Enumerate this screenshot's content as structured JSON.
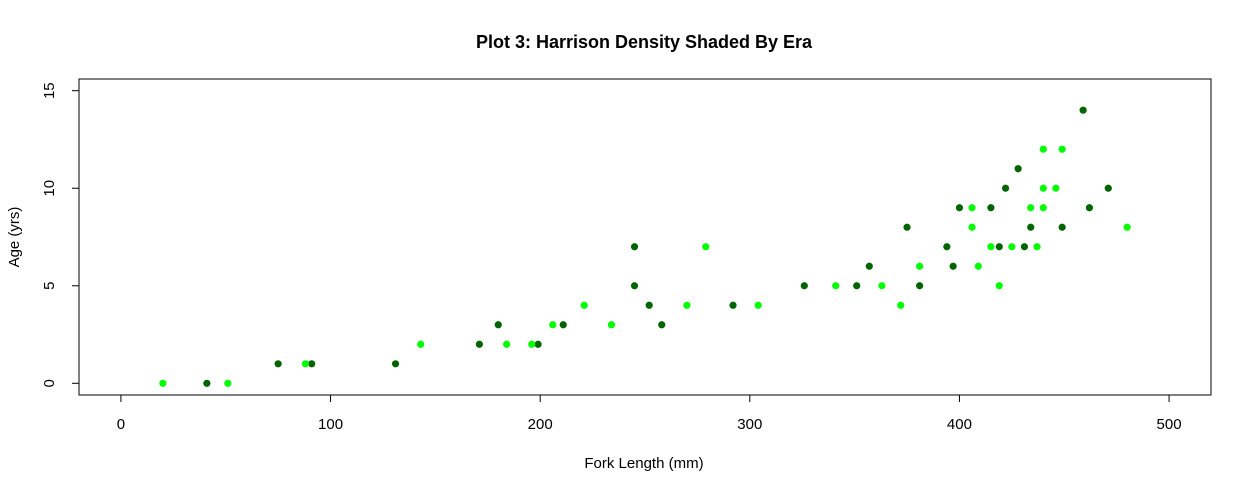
{
  "chart_data": {
    "type": "scatter",
    "title": "Plot 3: Harrison Density Shaded By Era",
    "xlabel": "Fork Length (mm)",
    "ylabel": "Age (yrs)",
    "xlim": [
      -20,
      520
    ],
    "ylim": [
      -0.6,
      15.6
    ],
    "xticks": [
      0,
      100,
      200,
      300,
      400,
      500
    ],
    "yticks": [
      0,
      5,
      10,
      15
    ],
    "grid": false,
    "legend": "none",
    "colors": {
      "dark": "#006400",
      "bright": "#00ff00"
    },
    "series": [
      {
        "color": "#006400",
        "points": [
          [
            41,
            0
          ],
          [
            75,
            1
          ],
          [
            91,
            1
          ],
          [
            131,
            1
          ],
          [
            171,
            2
          ],
          [
            180,
            3
          ],
          [
            199,
            2
          ],
          [
            211,
            3
          ],
          [
            245,
            5
          ],
          [
            245,
            7
          ],
          [
            252,
            4
          ],
          [
            258,
            3
          ],
          [
            292,
            4
          ],
          [
            326,
            5
          ],
          [
            351,
            5
          ],
          [
            357,
            6
          ],
          [
            375,
            8
          ],
          [
            381,
            5
          ],
          [
            394,
            7
          ],
          [
            397,
            6
          ],
          [
            400,
            9
          ],
          [
            415,
            9
          ],
          [
            419,
            7
          ],
          [
            422,
            10
          ],
          [
            428,
            11
          ],
          [
            431,
            7
          ],
          [
            434,
            8
          ],
          [
            449,
            8
          ],
          [
            459,
            14
          ],
          [
            462,
            9
          ],
          [
            471,
            10
          ]
        ]
      },
      {
        "color": "#00ff00",
        "points": [
          [
            20,
            0
          ],
          [
            51,
            0
          ],
          [
            88,
            1
          ],
          [
            143,
            2
          ],
          [
            184,
            2
          ],
          [
            196,
            2
          ],
          [
            206,
            3
          ],
          [
            221,
            4
          ],
          [
            234,
            3
          ],
          [
            270,
            4
          ],
          [
            279,
            7
          ],
          [
            304,
            4
          ],
          [
            341,
            5
          ],
          [
            363,
            5
          ],
          [
            372,
            4
          ],
          [
            381,
            6
          ],
          [
            406,
            9
          ],
          [
            406,
            8
          ],
          [
            409,
            6
          ],
          [
            415,
            7
          ],
          [
            419,
            5
          ],
          [
            425,
            7
          ],
          [
            434,
            9
          ],
          [
            437,
            7
          ],
          [
            440,
            12
          ],
          [
            440,
            10
          ],
          [
            440,
            9
          ],
          [
            446,
            10
          ],
          [
            449,
            12
          ],
          [
            480,
            8
          ]
        ]
      }
    ]
  }
}
